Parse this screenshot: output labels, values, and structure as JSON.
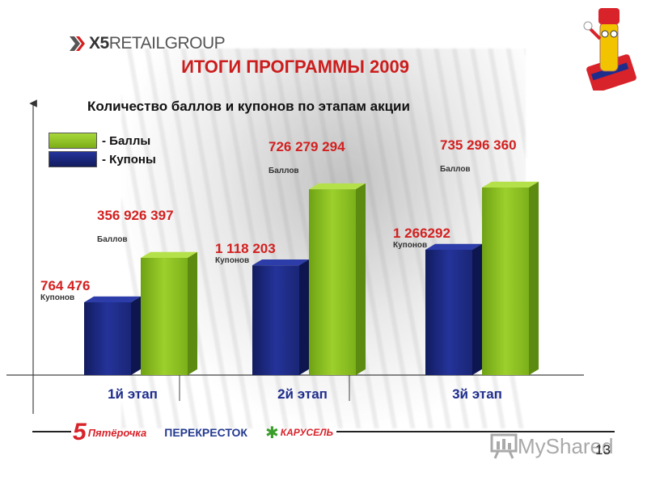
{
  "header": {
    "logo_text_strong": "X5",
    "logo_text_light": "RETAILGROUP",
    "title": "ИТОГИ ПРОГРАММЫ 2009",
    "subtitle": "Количество баллов и купонов по этапам акции"
  },
  "legend": [
    {
      "label": "- Баллы",
      "color": "#8ec31f"
    },
    {
      "label": "- Купоны",
      "color": "#1a2675"
    }
  ],
  "chart_data": {
    "type": "bar",
    "categories": [
      "1й этап",
      "2й этап",
      "3й этап"
    ],
    "series": [
      {
        "name": "- Купоны",
        "values": [
          764476,
          1118203,
          1266292
        ],
        "labels": [
          "764 476",
          "1 118 203",
          "1 266292"
        ],
        "unit_label": "Купонов"
      },
      {
        "name": "- Баллы",
        "values": [
          356926397,
          726279294,
          735296360
        ],
        "labels": [
          "356 926 397",
          "726 279 294",
          "735 296 360"
        ],
        "unit_label": "Баллов"
      }
    ],
    "colors": {
      "coupons": "#1a2675",
      "points": "#8ec31f"
    }
  },
  "footer": {
    "brand_pyaterochka_num": "5",
    "brand_pyaterochka": "Пятёрочка",
    "brand_perekrestok": "ПЕРЕКРЕСТОК",
    "brand_karusel": "КАРУСЕЛЬ",
    "page_number": "13"
  },
  "watermark": {
    "text": "MyShared"
  }
}
